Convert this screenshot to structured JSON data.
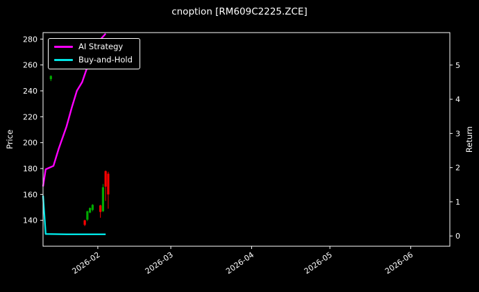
{
  "title": "cnoption [RM609C2225.ZCE]",
  "colors": {
    "background": "#000000",
    "axis": "#ffffff",
    "text": "#ffffff",
    "ai_strategy": "#ff00ff",
    "buy_and_hold": "#00e5e5",
    "candle_up": "#00aa00",
    "candle_down": "#ff0000"
  },
  "legend": {
    "position": "upper left",
    "items": [
      {
        "label": "AI Strategy",
        "color": "#ff00ff"
      },
      {
        "label": "Buy-and-Hold",
        "color": "#00e5e5"
      }
    ]
  },
  "chart_data": {
    "type": "line",
    "title": "cnoption [RM609C2225.ZCE]",
    "grid": false,
    "legend_position": "upper left",
    "x_axis": {
      "tick_labels": [
        "2026-02",
        "2026-03",
        "2026-04",
        "2026-05",
        "2026-06"
      ],
      "tick_dates": [
        "2026-02-01",
        "2026-03-01",
        "2026-04-01",
        "2026-05-01",
        "2026-06-01"
      ],
      "range": [
        "2026-01-11",
        "2026-06-16"
      ]
    },
    "y_left": {
      "label": "Price",
      "ticks": [
        140,
        160,
        180,
        200,
        220,
        240,
        260,
        280
      ],
      "range": [
        120,
        285
      ]
    },
    "y_right": {
      "label": "Return",
      "ticks": [
        0,
        1,
        2,
        3,
        4,
        5
      ],
      "range": [
        -0.3,
        5.95
      ]
    },
    "series": [
      {
        "name": "AI Strategy",
        "type": "line",
        "axis": "right",
        "color": "#ff00ff",
        "width": 2.4,
        "x": [
          "2026-01-11",
          "2026-01-12",
          "2026-01-15",
          "2026-01-17",
          "2026-01-20",
          "2026-01-22",
          "2026-01-24",
          "2026-01-26",
          "2026-01-28",
          "2026-01-31",
          "2026-02-02",
          "2026-02-04"
        ],
        "y": [
          1.45,
          1.95,
          2.05,
          2.55,
          3.2,
          3.75,
          4.25,
          4.5,
          4.95,
          5.45,
          5.75,
          5.92
        ]
      },
      {
        "name": "Buy-and-Hold",
        "type": "line",
        "axis": "right",
        "color": "#00e5e5",
        "width": 2.4,
        "x": [
          "2026-01-11",
          "2026-01-12",
          "2026-01-20",
          "2026-02-04"
        ],
        "y": [
          1.18,
          0.06,
          0.05,
          0.05
        ]
      }
    ],
    "candlesticks": {
      "axis": "left",
      "up_color": "#00aa00",
      "down_color": "#ff0000",
      "data": [
        {
          "date": "2026-01-14",
          "open": 249,
          "high": 252,
          "low": 247.5,
          "close": 251.5
        },
        {
          "date": "2026-01-27",
          "open": 140,
          "high": 140.5,
          "low": 135.5,
          "close": 136.5
        },
        {
          "date": "2026-01-28",
          "open": 140.5,
          "high": 147.5,
          "low": 139.5,
          "close": 147
        },
        {
          "date": "2026-01-29",
          "open": 146,
          "high": 150,
          "low": 145.5,
          "close": 149.5
        },
        {
          "date": "2026-01-30",
          "open": 148,
          "high": 152.5,
          "low": 147,
          "close": 152
        },
        {
          "date": "2026-02-02",
          "open": 151.5,
          "high": 152,
          "low": 142,
          "close": 146.5
        },
        {
          "date": "2026-02-03",
          "open": 147,
          "high": 168,
          "low": 146.5,
          "close": 165.5
        },
        {
          "date": "2026-02-04",
          "open": 178,
          "high": 178.5,
          "low": 155,
          "close": 166
        },
        {
          "date": "2026-02-05",
          "open": 176,
          "high": 177.5,
          "low": 149,
          "close": 160
        }
      ]
    }
  }
}
